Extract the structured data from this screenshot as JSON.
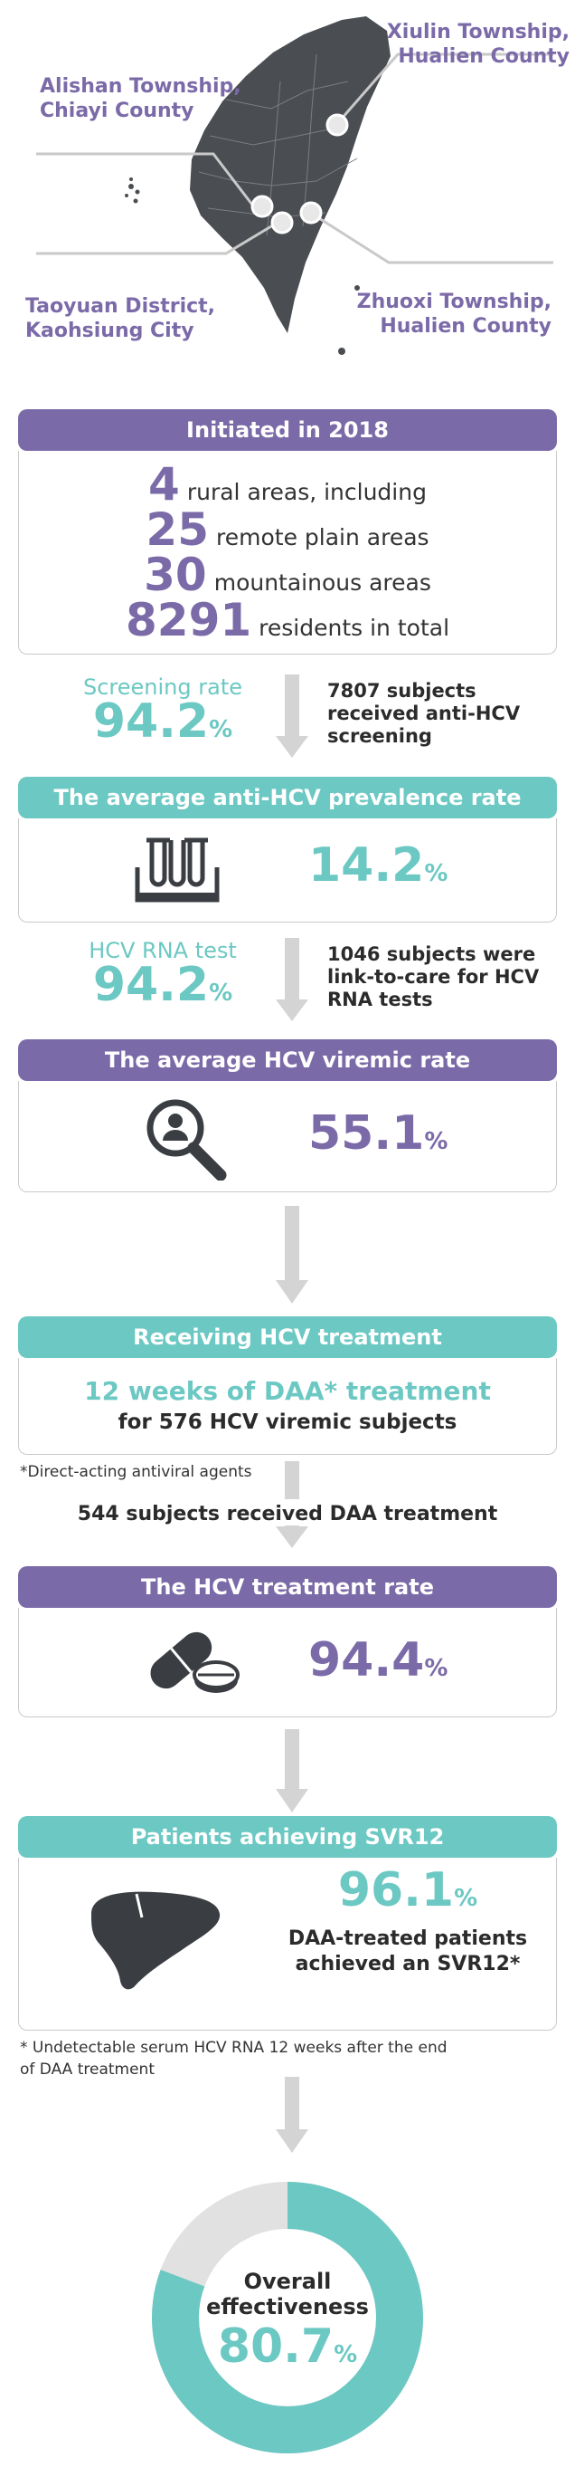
{
  "map": {
    "labels": {
      "xiulin": "Xiulin Township,\nHualien County",
      "alishan": "Alishan Township,\nChiayi County",
      "taoyuan": "Taoyuan District,\nKaohsiung City",
      "zhuoxi": "Zhuoxi Township,\nHualien County"
    }
  },
  "initiated": {
    "header": "Initiated in 2018",
    "rows": [
      {
        "num": "4",
        "text": "rural areas, including"
      },
      {
        "num": "25",
        "text": "remote plain areas"
      },
      {
        "num": "30",
        "text": "mountainous areas"
      },
      {
        "num": "8291",
        "text": "residents in total"
      }
    ]
  },
  "screening": {
    "label": "Screening rate",
    "value": "94.2",
    "unit": "%",
    "desc": "7807 subjects\nreceived anti-HCV\nscreening"
  },
  "prevalence": {
    "header": "The average anti-HCV prevalence rate",
    "value": "14.2",
    "unit": "%",
    "icon": "test-tubes-icon"
  },
  "rna": {
    "label": "HCV RNA test",
    "value": "94.2",
    "unit": "%",
    "desc": "1046 subjects were\nlink-to-care for HCV\nRNA tests"
  },
  "viremic": {
    "header": "The average HCV viremic rate",
    "value": "55.1",
    "unit": "%",
    "icon": "magnifier-person-icon"
  },
  "treatment": {
    "header": "Receiving HCV treatment",
    "line1": "12 weeks of DAA* treatment",
    "line2": "for 576 HCV viremic subjects",
    "footnote": "*Direct-acting antiviral agents",
    "received": "544 subjects received DAA treatment"
  },
  "treatment_rate": {
    "header": "The HCV treatment rate",
    "value": "94.4",
    "unit": "%",
    "icon": "pill-icon"
  },
  "svr": {
    "header": "Patients achieving SVR12",
    "value": "96.1",
    "unit": "%",
    "desc": "DAA-treated patients\nachieved an SVR12*",
    "icon": "liver-icon",
    "footnote": "* Undetectable serum HCV RNA 12 weeks after the end\nof DAA treatment"
  },
  "overall": {
    "title": "Overall\neffectiveness",
    "value": "80.7",
    "unit": "%",
    "fraction": 0.807,
    "colors": {
      "filled": "#6cc8c3",
      "rest": "#e1e1e1"
    }
  }
}
